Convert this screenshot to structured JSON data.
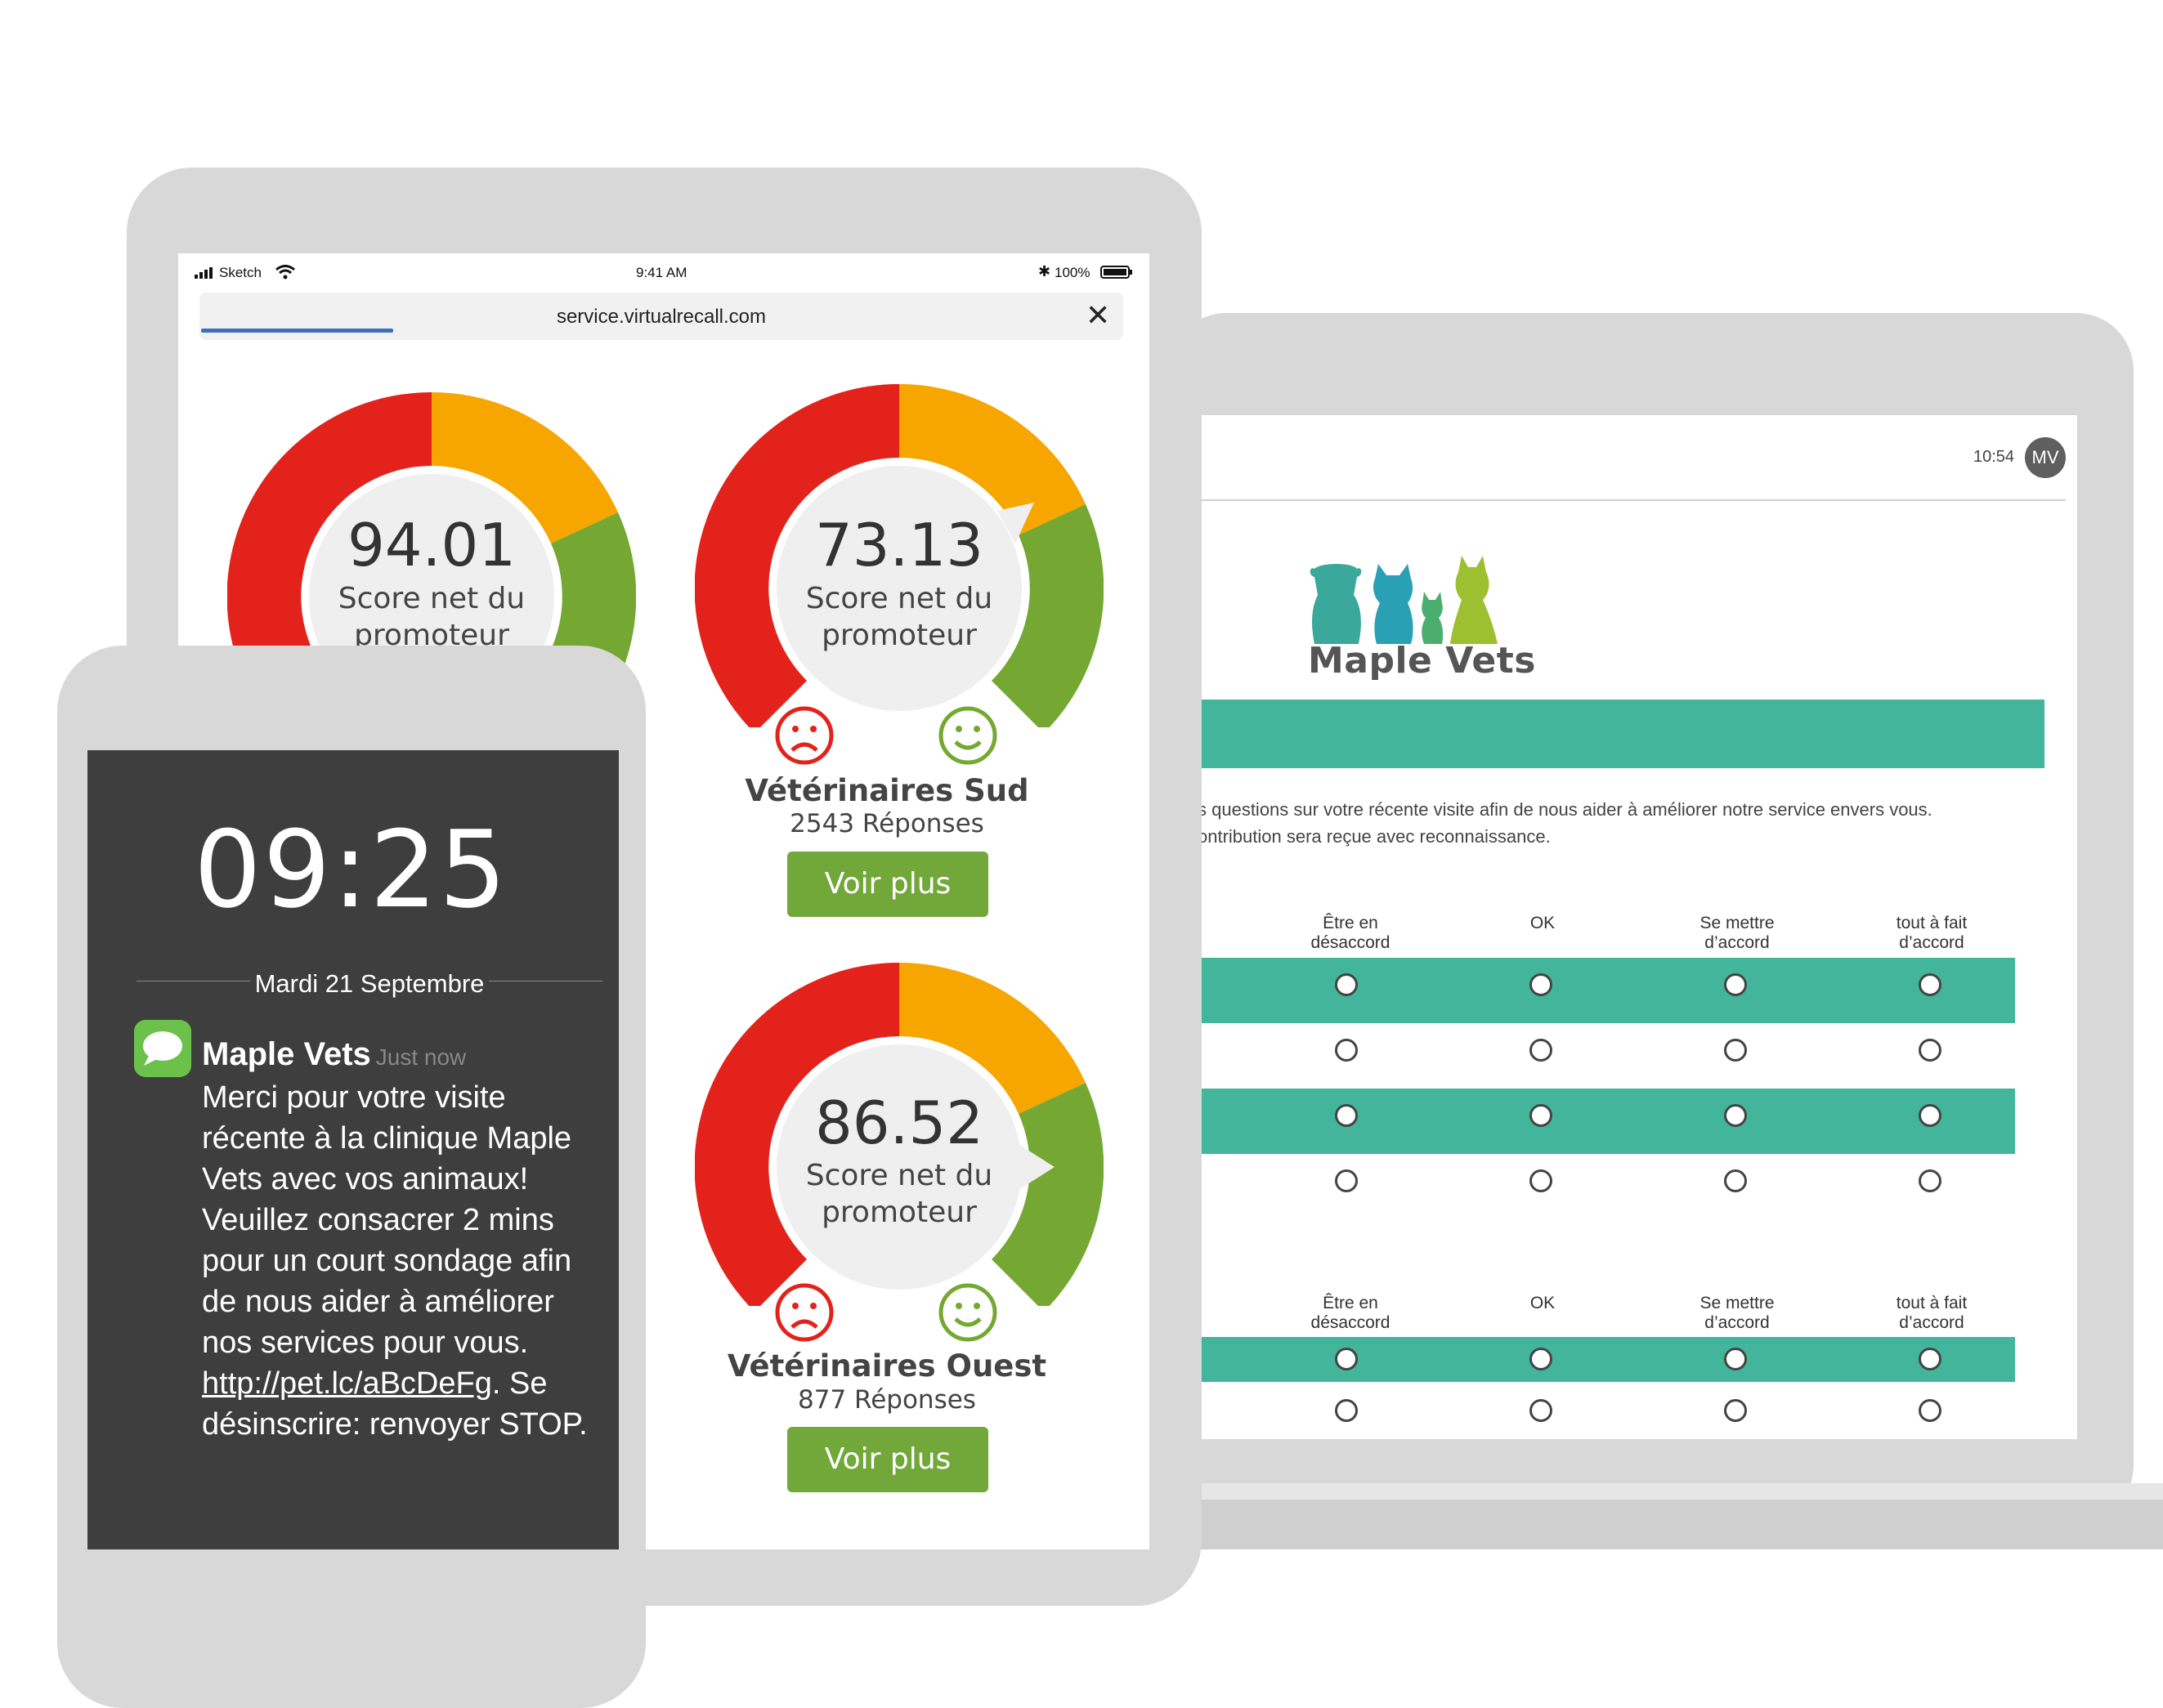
{
  "laptop": {
    "time": "10:54",
    "avatar": "MV",
    "brand": "Maple Vets",
    "intro_line1": "s questions sur votre récente visite afin de nous aider à améliorer notre service envers vous.",
    "intro_line2": "ontribution sera reçue avec reconnaissance.",
    "columns": [
      "Être en désaccord",
      "OK",
      "Se mettre d’accord",
      "tout à fait d’accord"
    ],
    "brand_colors": [
      "#3aa89a",
      "#2aa0b4",
      "#4cae6e",
      "#9cc030"
    ]
  },
  "tablet": {
    "status_carrier": "Sketch",
    "status_time": "9:41 AM",
    "status_battery": "100%",
    "url": "service.virtualrecall.com",
    "gauges": [
      {
        "score": "94.01",
        "label": "Score net du promoteur"
      },
      {
        "score": "73.13",
        "label": "Score net du promoteur",
        "clinic": "Vétérinaires Sud",
        "responses": "2543 Réponses",
        "button": "Voir plus"
      },
      {
        "score": "86.52",
        "label": "Score net du promoteur",
        "clinic": "Vétérinaires Ouest",
        "responses": "877 Réponses",
        "button": "Voir plus"
      }
    ],
    "colors": {
      "red": "#e3231b",
      "orange": "#f7a600",
      "green": "#74a832",
      "button": "#72a83a"
    }
  },
  "phone": {
    "clock": "09:25",
    "date": "Mardi 21 Septembre",
    "sender": "Maple Vets",
    "when": "Just now",
    "message": "Merci pour votre visite récente à la clinique Maple Vets avec vos animaux! Veuillez consacrer 2 mins pour un court sondage afin de nous aider à améliorer nos services pour vous.",
    "link": "http://pet.lc/aBcDeFg",
    "link_suffix": ".",
    "unsubscribe": "Se désinscrire: renvoyer STOP."
  }
}
